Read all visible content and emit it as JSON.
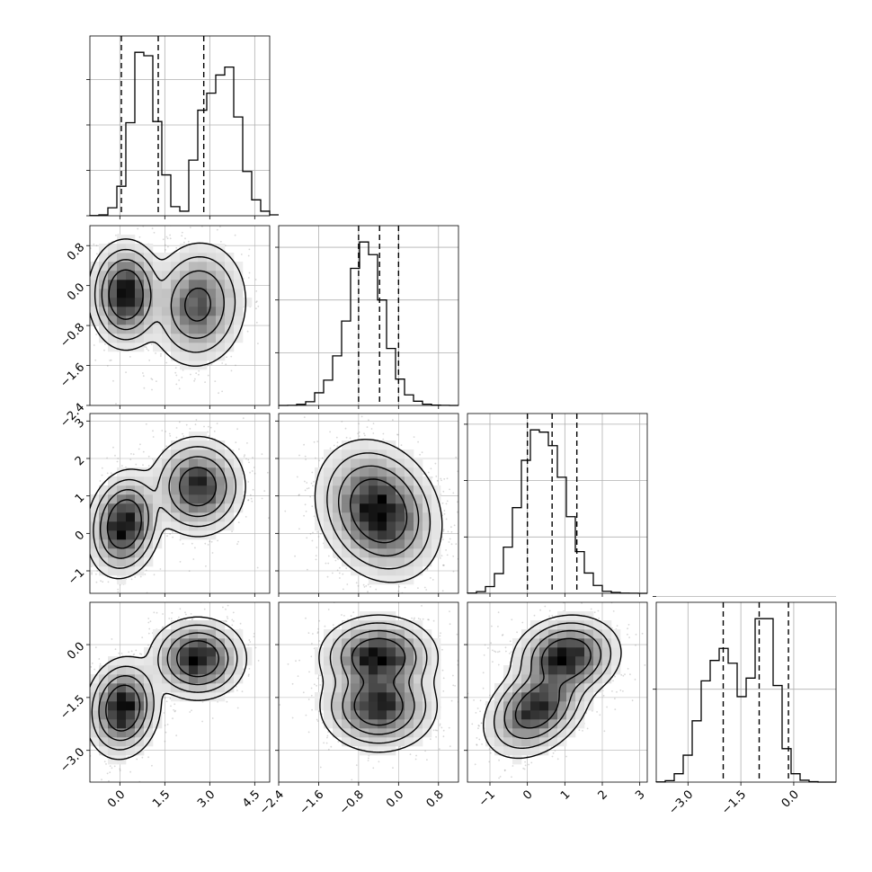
{
  "chart_data": {
    "type": "corner",
    "parameters": [
      {
        "range": [
          -1.0,
          5.0
        ],
        "ticks": [
          0.0,
          1.5,
          3.0,
          4.5
        ],
        "tick_labels": [
          "0.0",
          "1.5",
          "3.0",
          "4.5"
        ],
        "quantiles": [
          0.05,
          1.28,
          2.8
        ],
        "hist": {
          "start": -1.0,
          "step": 0.3,
          "counts": [
            1,
            4,
            35,
            130,
            410,
            720,
            705,
            415,
            180,
            40,
            20,
            245,
            465,
            540,
            620,
            655,
            435,
            195,
            70,
            20,
            4
          ]
        },
        "hist_ticks": [
          0,
          200,
          400,
          600
        ]
      },
      {
        "range": [
          -2.4,
          1.2
        ],
        "ticks": [
          -2.4,
          -1.6,
          -0.8,
          0.0,
          0.8
        ],
        "tick_labels": [
          "-2.4",
          "-1.6",
          "-0.8",
          "0.0",
          "0.8"
        ],
        "quantiles": [
          -0.8,
          -0.38,
          0.0
        ],
        "hist": {
          "start": -2.4,
          "step": 0.18,
          "counts": [
            0,
            1,
            10,
            35,
            120,
            240,
            470,
            800,
            1300,
            1550,
            1430,
            1000,
            540,
            250,
            100,
            40,
            12,
            3,
            1,
            0
          ]
        },
        "hist_ticks": [
          500,
          1000,
          1500
        ]
      },
      {
        "range": [
          -1.6,
          3.2
        ],
        "ticks": [
          -1,
          0,
          1,
          2,
          3
        ],
        "tick_labels": [
          "-1",
          "0",
          "1",
          "2",
          "3"
        ],
        "quantiles": [
          0.0,
          0.66,
          1.32
        ],
        "hist": {
          "start": -1.6,
          "step": 0.24,
          "counts": [
            2,
            15,
            60,
            175,
            410,
            760,
            1180,
            1450,
            1430,
            1310,
            1030,
            680,
            370,
            180,
            70,
            18,
            8,
            2,
            1,
            0
          ]
        },
        "hist_ticks": [
          500,
          1000,
          1500
        ]
      },
      {
        "range": [
          -3.9,
          1.2
        ],
        "ticks": [
          -3.0,
          -1.5,
          0.0
        ],
        "tick_labels": [
          "-3.0",
          "-1.5",
          "0.0"
        ],
        "quantiles": [
          -2.0,
          -0.98,
          -0.15
        ],
        "hist": {
          "start": -3.9,
          "step": 0.255,
          "counts": [
            1,
            8,
            45,
            145,
            330,
            545,
            655,
            720,
            640,
            460,
            560,
            880,
            880,
            520,
            180,
            45,
            10,
            2,
            0,
            0
          ]
        },
        "hist_ticks": [
          500,
          1000
        ]
      }
    ],
    "pairs": [
      {
        "row": 1,
        "col": 0,
        "components": [
          {
            "weight": 0.5,
            "mean": [
              0.2,
              -0.18
            ],
            "sd": [
              0.48,
              0.42
            ],
            "rho": 0.0
          },
          {
            "weight": 0.5,
            "mean": [
              2.6,
              -0.38
            ],
            "sd": [
              0.65,
              0.5
            ],
            "rho": 0.05
          }
        ]
      },
      {
        "row": 2,
        "col": 0,
        "components": [
          {
            "weight": 0.5,
            "mean": [
              0.15,
              0.25
            ],
            "sd": [
              0.48,
              0.55
            ],
            "rho": 0.15
          },
          {
            "weight": 0.5,
            "mean": [
              2.6,
              1.25
            ],
            "sd": [
              0.62,
              0.52
            ],
            "rho": 0.0
          }
        ]
      },
      {
        "row": 2,
        "col": 1,
        "components": [
          {
            "weight": 1.0,
            "mean": [
              -0.4,
              0.6
            ],
            "sd": [
              0.48,
              0.72
            ],
            "rho": -0.2
          }
        ]
      },
      {
        "row": 3,
        "col": 0,
        "components": [
          {
            "weight": 0.5,
            "mean": [
              0.1,
              -1.8
            ],
            "sd": [
              0.48,
              0.55
            ],
            "rho": 0.1
          },
          {
            "weight": 0.5,
            "mean": [
              2.6,
              -0.4
            ],
            "sd": [
              0.62,
              0.45
            ],
            "rho": 0.0
          }
        ]
      },
      {
        "row": 3,
        "col": 1,
        "components": [
          {
            "weight": 0.5,
            "mean": [
              -0.4,
              -0.35
            ],
            "sd": [
              0.45,
              0.45
            ],
            "rho": 0.0
          },
          {
            "weight": 0.5,
            "mean": [
              -0.4,
              -1.75
            ],
            "sd": [
              0.45,
              0.5
            ],
            "rho": 0.0
          }
        ]
      },
      {
        "row": 3,
        "col": 2,
        "components": [
          {
            "weight": 0.5,
            "mean": [
              0.25,
              -1.8
            ],
            "sd": [
              0.55,
              0.55
            ],
            "rho": 0.35
          },
          {
            "weight": 0.5,
            "mean": [
              1.05,
              -0.35
            ],
            "sd": [
              0.55,
              0.45
            ],
            "rho": 0.1
          }
        ]
      }
    ],
    "contour_levels": [
      0.5,
      0.25,
      0.1,
      0.03
    ],
    "grid": true,
    "colors": {
      "line": "#000000",
      "grid": "#b0b0b0",
      "points": "#8c8c8c",
      "density_dark": "#000000",
      "density_light": "#ffffff"
    }
  }
}
